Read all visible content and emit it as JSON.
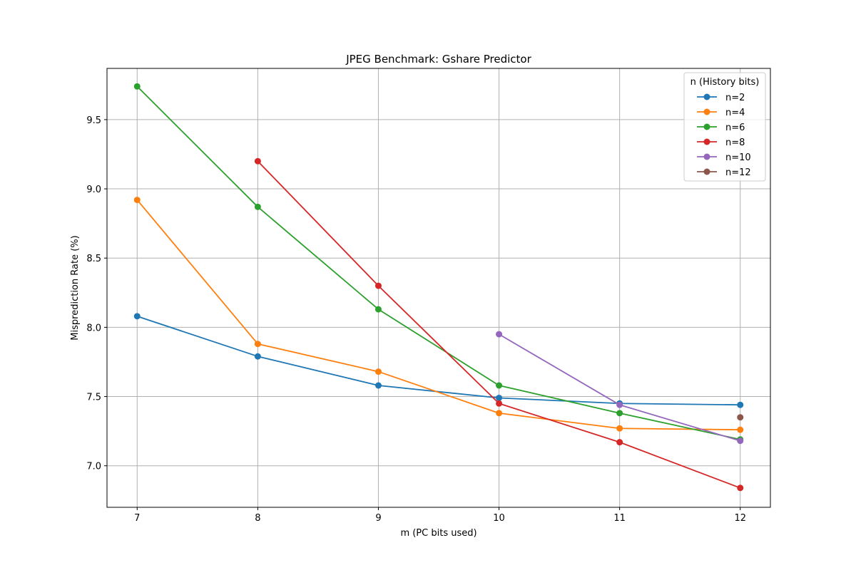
{
  "chart_data": {
    "type": "line",
    "title": "JPEG Benchmark: Gshare Predictor",
    "xlabel": "m (PC bits used)",
    "ylabel": "Misprediction Rate (%)",
    "xlim": [
      6.75,
      12.25
    ],
    "ylim": [
      6.7,
      9.87
    ],
    "xticks": [
      7,
      8,
      9,
      10,
      11,
      12
    ],
    "yticks": [
      7.0,
      7.5,
      8.0,
      8.5,
      9.0,
      9.5
    ],
    "ytick_labels": [
      "7.0",
      "7.5",
      "8.0",
      "8.5",
      "9.0",
      "9.5"
    ],
    "grid": true,
    "legend": {
      "title": "n (History bits)",
      "placement": "top-right"
    },
    "series": [
      {
        "name": "n=2",
        "color": "#1f77b4",
        "x": [
          7,
          8,
          9,
          10,
          11,
          12
        ],
        "y": [
          8.08,
          7.79,
          7.58,
          7.49,
          7.45,
          7.44
        ]
      },
      {
        "name": "n=4",
        "color": "#ff7f0e",
        "x": [
          7,
          8,
          9,
          10,
          11,
          12
        ],
        "y": [
          8.92,
          7.88,
          7.68,
          7.38,
          7.27,
          7.26
        ]
      },
      {
        "name": "n=6",
        "color": "#2ca02c",
        "x": [
          7,
          8,
          9,
          10,
          11,
          12
        ],
        "y": [
          9.74,
          8.87,
          8.13,
          7.58,
          7.38,
          7.19
        ]
      },
      {
        "name": "n=8",
        "color": "#d62728",
        "x": [
          8,
          9,
          10,
          11,
          12
        ],
        "y": [
          9.2,
          8.3,
          7.45,
          7.17,
          6.84
        ]
      },
      {
        "name": "n=10",
        "color": "#9467bd",
        "x": [
          10,
          11,
          12
        ],
        "y": [
          7.95,
          7.44,
          7.18
        ]
      },
      {
        "name": "n=12",
        "color": "#8c564b",
        "x": [
          12
        ],
        "y": [
          7.35
        ]
      }
    ]
  }
}
